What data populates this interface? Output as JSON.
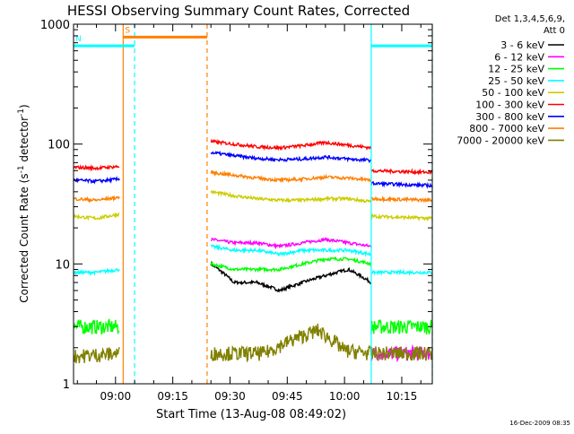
{
  "chart_data": {
    "type": "line",
    "title": "HESSI Observing Summary Count Rates, Corrected",
    "xlabel": "Start Time (13-Aug-08 08:49:02)",
    "ylabel": "Corrected Count Rate (s",
    "ylabel_sup1": "-1",
    "ylabel_mid": " detector",
    "ylabel_sup2": "-1",
    "ylabel_end": ")",
    "yscale": "log",
    "ylim": [
      1,
      1000
    ],
    "xlim_minutes": [
      0,
      94
    ],
    "xticks": [
      {
        "min": 11,
        "label": "09:00"
      },
      {
        "min": 26,
        "label": "09:15"
      },
      {
        "min": 41,
        "label": "09:30"
      },
      {
        "min": 56,
        "label": "09:45"
      },
      {
        "min": 71,
        "label": "10:00"
      },
      {
        "min": 86,
        "label": "10:15"
      }
    ],
    "yticks": [
      {
        "value": 1,
        "label": "1"
      },
      {
        "value": 10,
        "label": "10"
      },
      {
        "value": 100,
        "label": "100"
      },
      {
        "value": 1000,
        "label": "1000"
      }
    ],
    "legend_header": [
      "Det 1,3,4,5,6,9,",
      "Att 0"
    ],
    "legend_position": "right",
    "footer_date": "16-Dec-2009 08:35",
    "data_gap_minutes": [
      12,
      36
    ],
    "series": [
      {
        "name": "3 - 6 keV",
        "color": "#000000",
        "segments": [
          {
            "start": 36,
            "end": 78,
            "values": [
              10,
              7,
              7,
              6,
              7,
              8,
              9,
              7
            ]
          }
        ]
      },
      {
        "name": "6 - 12 keV",
        "color": "#ff00ff",
        "segments": [
          {
            "start": 36,
            "end": 78,
            "values": [
              16,
              15,
              15,
              14,
              15,
              16,
              15,
              14
            ]
          },
          {
            "start": 78,
            "end": 94,
            "values": [
              1.8,
              1.8
            ]
          }
        ]
      },
      {
        "name": "12 - 25 keV",
        "color": "#00ff00",
        "segments": [
          {
            "start": 0,
            "end": 12,
            "values": [
              3,
              3
            ]
          },
          {
            "start": 36,
            "end": 78,
            "values": [
              10,
              9,
              9,
              9,
              10,
              11,
              11,
              10
            ]
          },
          {
            "start": 78,
            "end": 94,
            "values": [
              3,
              3
            ]
          }
        ]
      },
      {
        "name": "25 - 50 keV",
        "color": "#00ffff",
        "segments": [
          {
            "start": 0,
            "end": 12,
            "values": [
              8.5,
              8.5,
              9
            ]
          },
          {
            "start": 36,
            "end": 78,
            "values": [
              14,
              13,
              13,
              12,
              13,
              13,
              13,
              12
            ]
          },
          {
            "start": 78,
            "end": 94,
            "values": [
              8.5,
              8.5
            ]
          }
        ]
      },
      {
        "name": "50 - 100 keV",
        "color": "#cccc00",
        "segments": [
          {
            "start": 0,
            "end": 12,
            "values": [
              25,
              24,
              26
            ]
          },
          {
            "start": 36,
            "end": 78,
            "values": [
              40,
              37,
              35,
              34,
              34,
              35,
              35,
              33
            ]
          },
          {
            "start": 78,
            "end": 94,
            "values": [
              25,
              24
            ]
          }
        ]
      },
      {
        "name": "100 - 300 keV",
        "color": "#ff0000",
        "segments": [
          {
            "start": 0,
            "end": 12,
            "values": [
              64,
              63,
              65
            ]
          },
          {
            "start": 36,
            "end": 78,
            "values": [
              105,
              100,
              95,
              93,
              97,
              103,
              98,
              93
            ]
          },
          {
            "start": 78,
            "end": 94,
            "values": [
              60,
              58
            ]
          }
        ]
      },
      {
        "name": "300 - 800 keV",
        "color": "#0000ff",
        "segments": [
          {
            "start": 0,
            "end": 12,
            "values": [
              50,
              49,
              51
            ]
          },
          {
            "start": 36,
            "end": 78,
            "values": [
              85,
              80,
              76,
              74,
              75,
              78,
              75,
              73
            ]
          },
          {
            "start": 78,
            "end": 94,
            "values": [
              47,
              45
            ]
          }
        ]
      },
      {
        "name": "800 - 7000 keV",
        "color": "#ff8000",
        "segments": [
          {
            "start": 0,
            "end": 12,
            "values": [
              35,
              34,
              36
            ]
          },
          {
            "start": 36,
            "end": 78,
            "values": [
              58,
              55,
              52,
              50,
              51,
              53,
              52,
              50
            ]
          },
          {
            "start": 78,
            "end": 94,
            "values": [
              35,
              34
            ]
          }
        ]
      },
      {
        "name": "7000 - 20000 keV",
        "color": "#808000",
        "segments": [
          {
            "start": 0,
            "end": 12,
            "values": [
              1.7,
              1.8
            ]
          },
          {
            "start": 36,
            "end": 78,
            "values": [
              1.8,
              1.8,
              1.8,
              2.3,
              2.8,
              1.9,
              1.8
            ]
          },
          {
            "start": 78,
            "end": 94,
            "values": [
              1.8,
              1.8
            ]
          }
        ]
      }
    ],
    "flags": [
      {
        "label": "S",
        "color": "#ff8000",
        "start": 13,
        "end": 35,
        "value": 780
      },
      {
        "label": "N",
        "color": "#00ffff",
        "start": 0,
        "end": 16,
        "value": 660
      },
      {
        "label": "",
        "color": "#00ffff",
        "start": 78,
        "end": 94,
        "value": 660
      }
    ],
    "markers": [
      {
        "min": 13,
        "color": "#ff8000",
        "style": "solid"
      },
      {
        "min": 35,
        "color": "#ff8000",
        "style": "dashed"
      },
      {
        "min": 16,
        "color": "#00ffff",
        "style": "dashed"
      },
      {
        "min": 78,
        "color": "#00ffff",
        "style": "solid"
      },
      {
        "min": 94,
        "color": "#00ffff",
        "style": "dashed"
      }
    ]
  }
}
